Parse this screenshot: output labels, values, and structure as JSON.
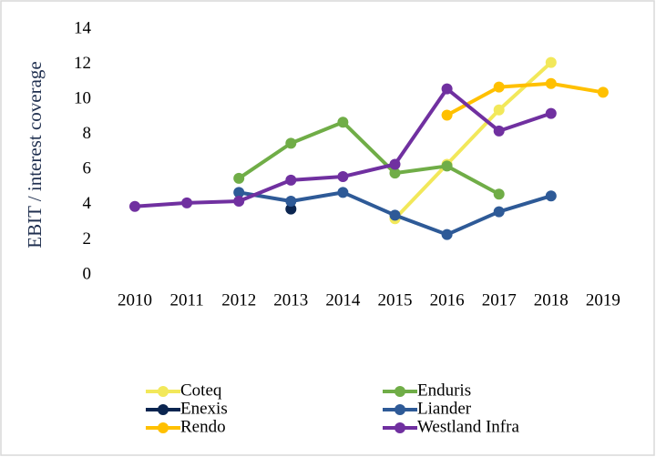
{
  "chart_data": {
    "type": "line",
    "y_label": "EBIT / interest coverage",
    "categories": [
      "2010",
      "2011",
      "2012",
      "2013",
      "2014",
      "2015",
      "2016",
      "2017",
      "2018",
      "2019"
    ],
    "ylim": [
      0,
      14
    ],
    "yticks": [
      0,
      2,
      4,
      6,
      8,
      10,
      12,
      14
    ],
    "grid": false,
    "series": [
      {
        "name": "Coteq",
        "color": "#f2e85a",
        "values": [
          null,
          null,
          null,
          null,
          null,
          3.2,
          6.3,
          9.4,
          12.1,
          null
        ]
      },
      {
        "name": "Enduris",
        "color": "#70ad47",
        "values": [
          null,
          null,
          5.5,
          7.5,
          8.7,
          5.8,
          6.2,
          4.6,
          null,
          null
        ]
      },
      {
        "name": "Enexis",
        "color": "#0b2550",
        "values": [
          null,
          null,
          null,
          3.75,
          null,
          null,
          null,
          null,
          null,
          null
        ]
      },
      {
        "name": "Liander",
        "color": "#2e5a97",
        "values": [
          null,
          null,
          4.7,
          4.2,
          4.7,
          3.4,
          2.3,
          3.6,
          4.5,
          null
        ]
      },
      {
        "name": "Rendo",
        "color": "#ffc000",
        "values": [
          null,
          null,
          null,
          null,
          null,
          null,
          9.1,
          10.7,
          10.9,
          10.4
        ]
      },
      {
        "name": "Westland Infra",
        "color": "#7030a0",
        "values": [
          3.9,
          4.1,
          4.2,
          5.4,
          5.6,
          6.3,
          10.6,
          8.2,
          9.2,
          null
        ]
      }
    ]
  }
}
